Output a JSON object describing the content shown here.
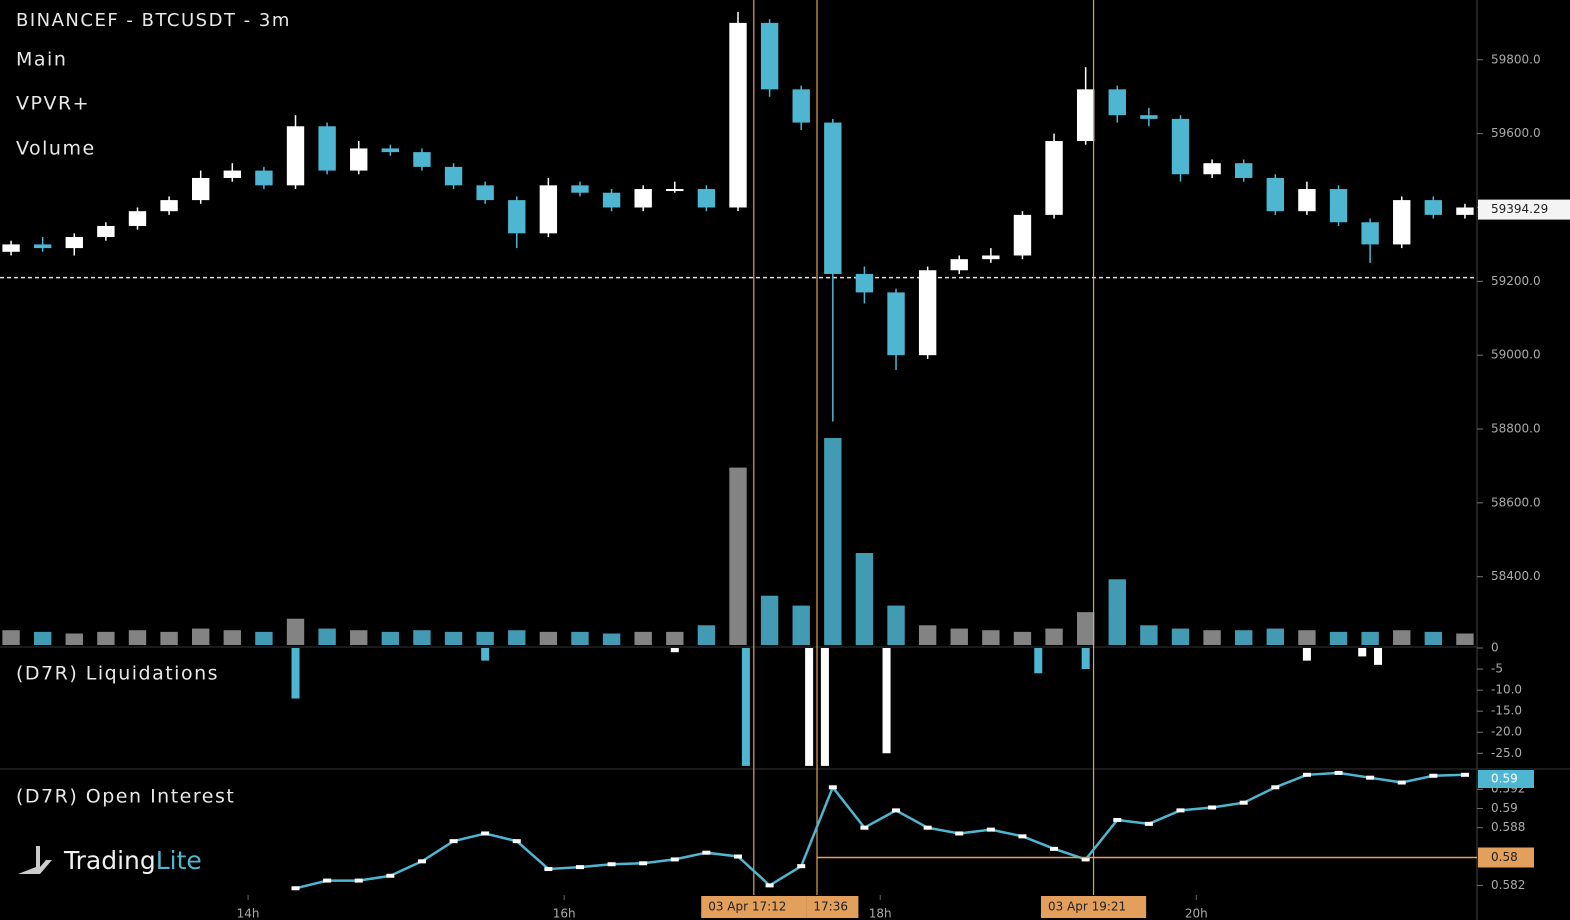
{
  "chart_data": [
    {
      "type": "candlestick",
      "title": "BINANCEF - BTCUSDT - 3m",
      "indicators": [
        "Main",
        "VPVR+",
        "Volume"
      ],
      "x": [
        12.5,
        12.7,
        12.9,
        13.1,
        13.3,
        13.5,
        13.7,
        13.9,
        14.1,
        14.3,
        14.5,
        14.7,
        14.9,
        15.1,
        15.3,
        15.5,
        15.7,
        15.9,
        16.1,
        16.3,
        16.5,
        16.7,
        16.9,
        17.1,
        17.3,
        17.5,
        17.7,
        17.9,
        18.1,
        18.3,
        18.5,
        18.7,
        18.9,
        19.1,
        19.3,
        19.5,
        19.7,
        19.9,
        20.1,
        20.3,
        20.5,
        20.7,
        20.9,
        21.1,
        21.3,
        21.5,
        21.7
      ],
      "open": [
        59280,
        59300,
        59290,
        59320,
        59350,
        59390,
        59420,
        59480,
        59500,
        59460,
        59620,
        59500,
        59560,
        59550,
        59510,
        59460,
        59420,
        59330,
        59460,
        59440,
        59400,
        59450,
        59450,
        59400,
        59900,
        59720,
        59630,
        59220,
        59170,
        59000,
        59230,
        59260,
        59270,
        59380,
        59580,
        59720,
        59650,
        59640,
        59490,
        59520,
        59480,
        59390,
        59450,
        59360,
        59300,
        59420,
        59380
      ],
      "high": [
        59310,
        59320,
        59330,
        59360,
        59400,
        59430,
        59500,
        59520,
        59510,
        59650,
        59630,
        59580,
        59570,
        59560,
        59520,
        59470,
        59430,
        59480,
        59470,
        59450,
        59460,
        59470,
        59460,
        59930,
        59910,
        59730,
        59640,
        59240,
        59180,
        59240,
        59270,
        59290,
        59390,
        59600,
        59780,
        59730,
        59670,
        59650,
        59530,
        59530,
        59490,
        59470,
        59460,
        59370,
        59430,
        59430,
        59410
      ],
      "low": [
        59270,
        59280,
        59270,
        59310,
        59340,
        59380,
        59410,
        59470,
        59450,
        59450,
        59490,
        59490,
        59540,
        59500,
        59450,
        59410,
        59290,
        59320,
        59430,
        59390,
        59390,
        59440,
        59390,
        59390,
        59700,
        59610,
        58820,
        59140,
        58960,
        58990,
        59220,
        59250,
        59260,
        59370,
        59570,
        59630,
        59620,
        59470,
        59480,
        59470,
        59380,
        59380,
        59350,
        59250,
        59290,
        59370,
        59370
      ],
      "close": [
        59300,
        59290,
        59320,
        59350,
        59390,
        59420,
        59480,
        59500,
        59460,
        59620,
        59500,
        59560,
        59550,
        59510,
        59460,
        59420,
        59330,
        59460,
        59440,
        59400,
        59450,
        59450,
        59400,
        59900,
        59720,
        59630,
        59220,
        59170,
        59000,
        59230,
        59260,
        59270,
        59380,
        59580,
        59720,
        59650,
        59640,
        59490,
        59520,
        59480,
        59390,
        59450,
        59360,
        59300,
        59420,
        59380,
        59400
      ],
      "up_color": "#ffffff",
      "down_color": "#4fb6d2",
      "volume": [
        45,
        40,
        35,
        40,
        45,
        40,
        50,
        45,
        40,
        80,
        50,
        45,
        40,
        45,
        40,
        40,
        45,
        40,
        40,
        35,
        40,
        40,
        60,
        540,
        150,
        120,
        630,
        280,
        120,
        60,
        50,
        45,
        40,
        50,
        100,
        200,
        60,
        50,
        45,
        45,
        50,
        45,
        40,
        40,
        45,
        40,
        35
      ],
      "volume_ylim": [
        0,
        700
      ],
      "ylim": [
        58215,
        59962
      ],
      "yticks": [
        {
          "value": 58400,
          "label": "58400.0"
        },
        {
          "value": 58600,
          "label": "58600.0"
        },
        {
          "value": 58800,
          "label": "58800.0"
        },
        {
          "value": 59000,
          "label": "59000.0"
        },
        {
          "value": 59200,
          "label": "59200.0"
        },
        {
          "value": 59400,
          "label": "59400.0"
        },
        {
          "value": 59600,
          "label": "59600.0"
        },
        {
          "value": 59800,
          "label": "59800.0"
        }
      ],
      "last_price": 59394.29,
      "hline": 59210,
      "markers": [
        {
          "x": 17.2,
          "label": "03 Apr 17:12"
        },
        {
          "x": 17.6,
          "label": "17:36"
        },
        {
          "x": 19.35,
          "label": "03 Apr 19:21"
        }
      ],
      "marker_color": "#e3a05c",
      "xlim": [
        12.43,
        21.77
      ]
    },
    {
      "type": "bar",
      "title": "(D7R) Liquidations",
      "x": [
        14.3,
        15.5,
        16.7,
        17.15,
        17.55,
        17.65,
        18.04,
        19.0,
        19.3,
        20.7,
        21.05,
        21.15
      ],
      "values": [
        -12,
        -3,
        -1,
        -28,
        -28,
        -28,
        -25,
        -6,
        -5,
        -3,
        -2,
        -4
      ],
      "colors": [
        "#4fb6d2",
        "#4fb6d2",
        "#ffffff",
        "#4fb6d2",
        "#ffffff",
        "#ffffff",
        "#ffffff",
        "#4fb6d2",
        "#4fb6d2",
        "#ffffff",
        "#ffffff",
        "#ffffff"
      ],
      "ylim": [
        -28.5,
        0
      ],
      "yticks": [
        0,
        -5,
        {
          "value": -10,
          "label": "-10.0"
        },
        {
          "value": -15,
          "label": "-15.0"
        },
        {
          "value": -20,
          "label": "-20.0"
        },
        {
          "value": -25,
          "label": "-25.0"
        }
      ],
      "xlim": [
        12.43,
        21.77
      ]
    },
    {
      "type": "line",
      "title": "(D7R) Open Interest",
      "x": [
        12.5,
        12.7,
        12.9,
        13.1,
        13.3,
        13.5,
        13.7,
        13.9,
        14.1,
        14.3,
        14.5,
        14.7,
        14.9,
        15.1,
        15.3,
        15.5,
        15.7,
        15.9,
        16.1,
        16.3,
        16.5,
        16.7,
        16.9,
        17.1,
        17.3,
        17.5,
        17.7,
        17.9,
        18.1,
        18.3,
        18.5,
        18.7,
        18.9,
        19.1,
        19.3,
        19.5,
        19.7,
        19.9,
        20.1,
        20.3,
        20.5,
        20.7,
        20.9,
        21.1,
        21.3,
        21.5,
        21.7
      ],
      "values": [
        null,
        null,
        null,
        null,
        null,
        null,
        null,
        null,
        null,
        0.5817,
        0.5825,
        0.5825,
        0.583,
        0.5845,
        0.5866,
        0.5874,
        0.5866,
        0.5837,
        0.5839,
        0.5842,
        0.5843,
        0.5847,
        0.5854,
        0.585,
        0.582,
        0.584,
        0.5922,
        0.588,
        0.5898,
        0.588,
        0.5874,
        0.5878,
        0.5871,
        0.5858,
        0.5847,
        0.5888,
        0.5884,
        0.5898,
        0.5901,
        0.5906,
        0.5922,
        0.5935,
        0.5937,
        0.5932,
        0.5927,
        0.5934,
        0.5935
      ],
      "color": "#4fb6d2",
      "ylim": [
        0.581,
        0.594
      ],
      "yticks": [
        0.582,
        0.588,
        0.59,
        0.592
      ],
      "last": {
        "value": 0.5935,
        "label": "0.59"
      },
      "reference": {
        "value": 0.5849,
        "label": "0.58"
      },
      "xlim": [
        12.43,
        21.77
      ],
      "xticks": [
        {
          "value": 14,
          "label": "14h"
        },
        {
          "value": 16,
          "label": "16h"
        },
        {
          "value": 18,
          "label": "18h"
        },
        {
          "value": 20,
          "label": "20h"
        }
      ]
    }
  ],
  "branding": {
    "name": "Trading",
    "accent": "Lite"
  }
}
